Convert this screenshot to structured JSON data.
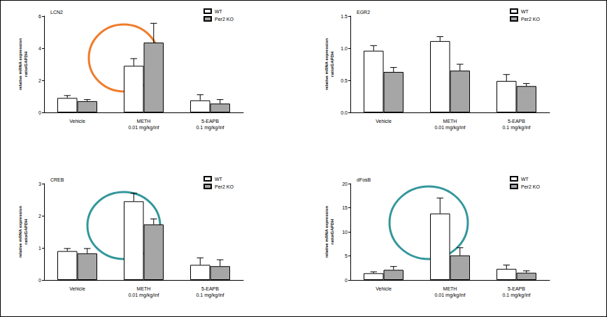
{
  "chart_data": [
    {
      "type": "bar",
      "title": "LCN2",
      "y_label": "relative mRNA expression\nratio/GAPDH",
      "categories": [
        "Vehicle",
        "METH\n0.01 mg/kg/inf",
        "5-EAPB\n0.1 mg/kg/inf"
      ],
      "series": [
        {
          "name": "WT",
          "color": "#ffffff",
          "values": [
            0.9,
            2.9,
            0.75
          ],
          "errors": [
            0.15,
            0.45,
            0.35
          ]
        },
        {
          "name": "Per2 KO",
          "color": "#a6a6a6",
          "values": [
            0.7,
            4.35,
            0.55
          ],
          "errors": [
            0.1,
            1.2,
            0.25
          ]
        }
      ],
      "ylim": [
        0,
        6
      ],
      "yticks": [
        0,
        2,
        4,
        6
      ],
      "legend": "top-right"
    },
    {
      "type": "bar",
      "title": "EGR2",
      "y_label": "relative mRNA expression\nratio/GAPDH",
      "categories": [
        "Vehicle",
        "METH\n0.01 mg/kg/inf",
        "5-EAPB\n0.1 mg/kg/inf"
      ],
      "series": [
        {
          "name": "WT",
          "color": "#ffffff",
          "values": [
            0.96,
            1.11,
            0.49
          ],
          "errors": [
            0.08,
            0.07,
            0.1
          ]
        },
        {
          "name": "Per2 KO",
          "color": "#a6a6a6",
          "values": [
            0.63,
            0.65,
            0.41
          ],
          "errors": [
            0.07,
            0.1,
            0.04
          ]
        }
      ],
      "ylim": [
        0,
        1.5
      ],
      "yticks": [
        {
          "value": 0,
          "label": "0.0"
        },
        {
          "value": 0.5,
          "label": "0.5"
        },
        {
          "value": 1,
          "label": "1.0"
        },
        {
          "value": 1.5,
          "label": "1.5"
        }
      ],
      "legend": "top-right"
    },
    {
      "type": "bar",
      "title": "CREB",
      "y_label": "relative mRNA expression\nratio/GAPDH",
      "categories": [
        "Vehicle",
        "METH\n0.01 mg/kg/inf",
        "5-EAPB\n0.1 mg/kg/inf"
      ],
      "series": [
        {
          "name": "WT",
          "color": "#ffffff",
          "values": [
            0.9,
            2.45,
            0.47
          ],
          "errors": [
            0.08,
            0.25,
            0.22
          ]
        },
        {
          "name": "Per2 KO",
          "color": "#a6a6a6",
          "values": [
            0.83,
            1.73,
            0.43
          ],
          "errors": [
            0.15,
            0.17,
            0.2
          ]
        }
      ],
      "ylim": [
        0,
        3
      ],
      "yticks": [
        0,
        1,
        2,
        3
      ],
      "legend": "top-right"
    },
    {
      "type": "bar",
      "title": "dFosB",
      "y_label": "relative mRNA expression\nratio/GAPDH",
      "categories": [
        "Vehicle",
        "METH\n0.01 mg/kg/inf",
        "5-EAPB\n0.1 mg/kg/inf"
      ],
      "series": [
        {
          "name": "WT",
          "color": "#ffffff",
          "values": [
            1.4,
            13.8,
            2.3
          ],
          "errors": [
            0.3,
            3.2,
            0.8
          ]
        },
        {
          "name": "Per2 KO",
          "color": "#a6a6a6",
          "values": [
            2.1,
            5.1,
            1.5
          ],
          "errors": [
            0.7,
            1.6,
            0.4
          ]
        }
      ],
      "ylim": [
        0,
        20
      ],
      "yticks": [
        0,
        5,
        10,
        15,
        20
      ],
      "legend": "top-right"
    }
  ]
}
